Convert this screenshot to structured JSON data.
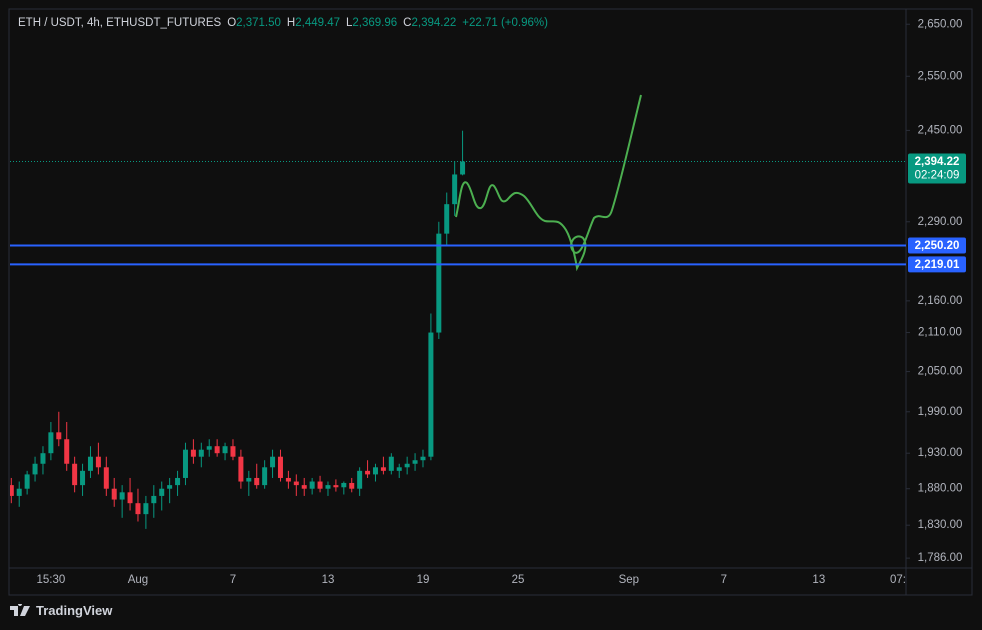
{
  "chart_data": {
    "type": "candlestick",
    "symbol": "ETH / USDT, 4h, ETHUSDT_FUTURES",
    "ohlc_legend": [
      {
        "key": "O",
        "value": "2,371.50"
      },
      {
        "key": "H",
        "value": "2,449.47"
      },
      {
        "key": "L",
        "value": "2,369.96"
      },
      {
        "key": "C",
        "value": "2,394.22"
      }
    ],
    "change": "+22.71 (+0.96%)",
    "up_color": "#089981",
    "down_color": "#f23645",
    "log_scale": true,
    "grid": false,
    "ylim": [
      1773,
      2678
    ],
    "yticks": [
      {
        "value": 2650,
        "label": "2,650.00"
      },
      {
        "value": 2550,
        "label": "2,550.00"
      },
      {
        "value": 2450,
        "label": "2,450.00"
      },
      {
        "value": 2290,
        "label": "2,290.00"
      },
      {
        "value": 2160,
        "label": "2,160.00"
      },
      {
        "value": 2110,
        "label": "2,110.00"
      },
      {
        "value": 2050,
        "label": "2,050.00"
      },
      {
        "value": 1990,
        "label": "1,990.00"
      },
      {
        "value": 1930,
        "label": "1,930.00"
      },
      {
        "value": 1880,
        "label": "1,880.00"
      },
      {
        "value": 1830,
        "label": "1,830.00"
      },
      {
        "value": 1786,
        "label": "1,786.00"
      }
    ],
    "last_price": {
      "value": 2394.22,
      "label": "2,394.22",
      "countdown": "02:24:09",
      "color": "#089981"
    },
    "hlines": [
      {
        "value": 2250.2,
        "label": "2,250.20",
        "color": "#2962ff"
      },
      {
        "value": 2219.01,
        "label": "2,219.01",
        "color": "#2962ff"
      }
    ],
    "categories": [
      null,
      null,
      null,
      null,
      null,
      "15:30",
      null,
      null,
      null,
      null,
      null,
      null,
      null,
      null,
      null,
      null,
      "Aug",
      null,
      null,
      null,
      null,
      null,
      null,
      null,
      null,
      null,
      null,
      null,
      "7",
      null,
      null,
      null,
      null,
      null,
      null,
      null,
      null,
      null,
      null,
      null,
      "13",
      null,
      null,
      null,
      null,
      null,
      null,
      null,
      null,
      null,
      null,
      null,
      "19",
      null,
      null,
      null,
      null,
      null,
      null,
      null,
      null,
      null,
      null,
      null,
      "25",
      null,
      null,
      null,
      null,
      null,
      null,
      null,
      null,
      null,
      null,
      null,
      null,
      null,
      "Sep",
      null,
      null,
      null,
      null,
      null,
      null,
      null,
      null,
      null,
      null,
      null,
      "7",
      null,
      null,
      null,
      null,
      null,
      null,
      null,
      null,
      null,
      null,
      null,
      "13",
      null,
      null,
      null,
      null,
      null,
      null,
      null,
      null,
      null,
      "07:"
    ],
    "candles": [
      [
        1885,
        1895,
        1860,
        1870
      ],
      [
        1870,
        1890,
        1855,
        1880
      ],
      [
        1880,
        1905,
        1872,
        1900
      ],
      [
        1900,
        1925,
        1890,
        1915
      ],
      [
        1915,
        1940,
        1900,
        1930
      ],
      [
        1930,
        1975,
        1920,
        1960
      ],
      [
        1960,
        1990,
        1940,
        1950
      ],
      [
        1950,
        1975,
        1905,
        1915
      ],
      [
        1915,
        1925,
        1875,
        1885
      ],
      [
        1885,
        1915,
        1870,
        1905
      ],
      [
        1905,
        1940,
        1895,
        1925
      ],
      [
        1925,
        1945,
        1900,
        1910
      ],
      [
        1910,
        1925,
        1870,
        1880
      ],
      [
        1880,
        1895,
        1855,
        1865
      ],
      [
        1865,
        1885,
        1840,
        1875
      ],
      [
        1875,
        1895,
        1850,
        1860
      ],
      [
        1860,
        1880,
        1835,
        1845
      ],
      [
        1845,
        1870,
        1825,
        1860
      ],
      [
        1860,
        1885,
        1840,
        1870
      ],
      [
        1870,
        1890,
        1850,
        1880
      ],
      [
        1880,
        1895,
        1860,
        1885
      ],
      [
        1885,
        1905,
        1870,
        1895
      ],
      [
        1895,
        1945,
        1885,
        1935
      ],
      [
        1935,
        1950,
        1915,
        1925
      ],
      [
        1925,
        1945,
        1910,
        1935
      ],
      [
        1935,
        1950,
        1925,
        1940
      ],
      [
        1940,
        1950,
        1925,
        1930
      ],
      [
        1930,
        1945,
        1920,
        1940
      ],
      [
        1940,
        1950,
        1920,
        1925
      ],
      [
        1925,
        1935,
        1880,
        1890
      ],
      [
        1890,
        1905,
        1870,
        1895
      ],
      [
        1895,
        1915,
        1880,
        1885
      ],
      [
        1885,
        1920,
        1880,
        1910
      ],
      [
        1910,
        1935,
        1895,
        1925
      ],
      [
        1925,
        1935,
        1890,
        1895
      ],
      [
        1895,
        1905,
        1880,
        1890
      ],
      [
        1890,
        1900,
        1870,
        1885
      ],
      [
        1885,
        1895,
        1870,
        1880
      ],
      [
        1880,
        1895,
        1872,
        1890
      ],
      [
        1890,
        1898,
        1875,
        1880
      ],
      [
        1880,
        1890,
        1870,
        1885
      ],
      [
        1885,
        1893,
        1876,
        1882
      ],
      [
        1882,
        1890,
        1872,
        1888
      ],
      [
        1888,
        1895,
        1875,
        1880
      ],
      [
        1880,
        1910,
        1870,
        1905
      ],
      [
        1905,
        1920,
        1895,
        1900
      ],
      [
        1900,
        1915,
        1890,
        1910
      ],
      [
        1910,
        1925,
        1900,
        1905
      ],
      [
        1905,
        1930,
        1900,
        1925
      ],
      [
        1905,
        1915,
        1895,
        1910
      ],
      [
        1910,
        1925,
        1900,
        1915
      ],
      [
        1915,
        1930,
        1905,
        1920
      ],
      [
        1920,
        1935,
        1910,
        1925
      ],
      [
        1925,
        2140,
        1920,
        2110
      ],
      [
        2110,
        2290,
        2100,
        2270
      ],
      [
        2270,
        2340,
        2250,
        2320
      ],
      [
        2320,
        2395,
        2300,
        2371.5
      ],
      [
        2371.5,
        2449.47,
        2369.96,
        2394.22
      ],
      null,
      null,
      null,
      null,
      null,
      null,
      null,
      null,
      null,
      null,
      null,
      null,
      null,
      null,
      null,
      null,
      null,
      null,
      null,
      null,
      null,
      null,
      null,
      null,
      null,
      null,
      null,
      null,
      null,
      null,
      null,
      null,
      null,
      null,
      null,
      null,
      null,
      null,
      null,
      null,
      null,
      null,
      null,
      null,
      null,
      null,
      null,
      null,
      null,
      null,
      null,
      null,
      null,
      null,
      null
    ],
    "brand": "TradingView"
  }
}
